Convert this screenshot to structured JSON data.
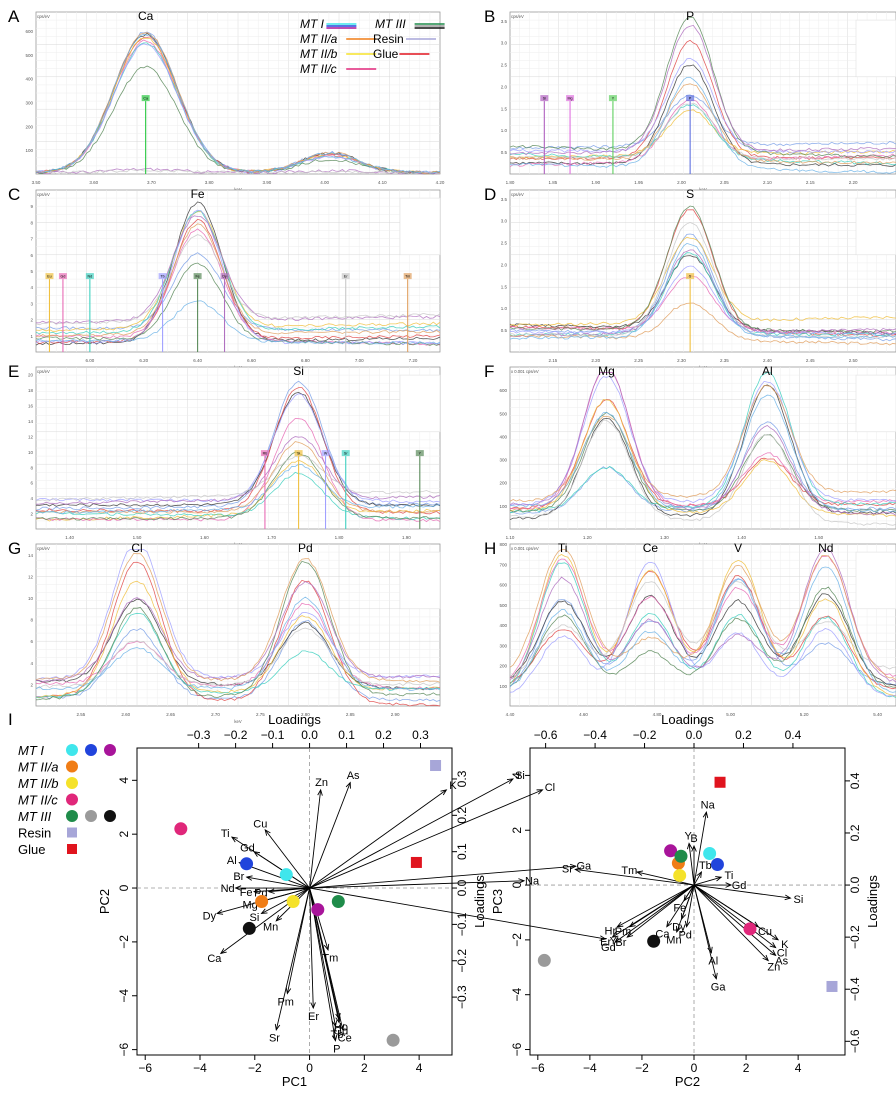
{
  "panel_letters": [
    "A",
    "B",
    "C",
    "D",
    "E",
    "F",
    "G",
    "H",
    "I"
  ],
  "legend": {
    "entries": [
      {
        "label": "MT I",
        "italic": true,
        "colors": [
          "#3fe6ec",
          "#2144dc",
          "#a8149a"
        ]
      },
      {
        "label": "MT II/a",
        "italic": true,
        "colors": [
          "#f07d16"
        ]
      },
      {
        "label": "MT II/b",
        "italic": true,
        "colors": [
          "#f5e22a"
        ]
      },
      {
        "label": "MT II/c",
        "italic": true,
        "colors": [
          "#e0277a"
        ]
      },
      {
        "label": "MT III",
        "italic": true,
        "colors": [
          "#1f8c4a",
          "#9a9a9a",
          "#111111"
        ]
      },
      {
        "label": "Resin",
        "italic": false,
        "colors": [
          "#a7a6d8"
        ]
      },
      {
        "label": "Glue",
        "italic": false,
        "colors": [
          "#e0141e"
        ]
      }
    ]
  },
  "chart_data": [
    {
      "panel": "A",
      "type": "line",
      "title": "Ca",
      "element_labels": [
        "Ca"
      ],
      "xlim": [
        3.5,
        4.2
      ],
      "ylim": [
        0,
        680
      ],
      "xlabel": "keV",
      "ylabel": "cps/eV",
      "x_ticks": [
        "3.50",
        "3.60",
        "3.70",
        "3.80",
        "3.90",
        "4.00",
        "4.10",
        "4.20"
      ],
      "y_ticks": [
        "100",
        "200",
        "300",
        "400",
        "500",
        "600"
      ],
      "peaks": [
        {
          "x": 3.69,
          "w": 0.055,
          "heights": [
            640,
            630,
            620,
            615,
            600,
            590,
            585,
            480,
            15,
            10
          ]
        },
        {
          "x": 4.01,
          "w": 0.05,
          "heights": [
            90,
            88,
            85,
            80,
            78,
            75,
            70,
            60,
            8,
            5
          ]
        }
      ],
      "markers": [
        {
          "label": "Ca",
          "x": 3.69,
          "color": "#28c840"
        }
      ],
      "legend": {
        "items": [
          "MT I",
          "MT II/a",
          "MT II/b",
          "MT II/c",
          "MT III",
          "Resin",
          "Glue"
        ]
      }
    },
    {
      "panel": "B",
      "type": "line",
      "title": "P",
      "element_labels": [
        "P"
      ],
      "xlim": [
        1.8,
        2.25
      ],
      "ylim": [
        0,
        3.7
      ],
      "xlabel": "keV",
      "ylabel": "cps/eV",
      "x_ticks": [
        "1.80",
        "1.85",
        "1.90",
        "1.95",
        "2.00",
        "2.05",
        "2.10",
        "2.15",
        "2.20"
      ],
      "y_ticks": [
        "0.5",
        "1.0",
        "1.5",
        "2.0",
        "2.5",
        "3.0",
        "3.5"
      ],
      "markers": [
        {
          "label": "Si",
          "x": 1.84,
          "color": "#b060c0"
        },
        {
          "label": "Mg",
          "x": 1.87,
          "color": "#e070e0"
        },
        {
          "label": "Y",
          "x": 1.92,
          "color": "#60d060"
        },
        {
          "label": "P",
          "x": 2.01,
          "color": "#6070e0"
        }
      ]
    },
    {
      "panel": "C",
      "type": "line",
      "title": "Fe",
      "element_labels": [
        "Fe"
      ],
      "xlim": [
        5.8,
        7.3
      ],
      "ylim": [
        0,
        10
      ],
      "xlabel": "keV",
      "ylabel": "cps/eV",
      "x_ticks": [
        "6.00",
        "6.20",
        "6.40",
        "6.60",
        "6.80",
        "7.00",
        "7.20"
      ],
      "y_ticks": [
        "1",
        "2",
        "3",
        "4",
        "5",
        "6",
        "7",
        "8",
        "9"
      ],
      "markers": [
        {
          "label": "Eu",
          "x": 5.85
        },
        {
          "label": "Gd",
          "x": 5.9
        },
        {
          "label": "Nd",
          "x": 6.0
        },
        {
          "label": "Tb",
          "x": 6.27
        },
        {
          "label": "Fe",
          "x": 6.4
        },
        {
          "label": "Dy",
          "x": 6.5
        },
        {
          "label": "Er",
          "x": 6.95
        },
        {
          "label": "Tm",
          "x": 7.18
        }
      ]
    },
    {
      "panel": "D",
      "type": "line",
      "title": "S",
      "element_labels": [
        "S"
      ],
      "xlim": [
        2.1,
        2.55
      ],
      "ylim": [
        0,
        3.7
      ],
      "xlabel": "keV",
      "ylabel": "cps/eV",
      "x_ticks": [
        "2.15",
        "2.20",
        "2.25",
        "2.30",
        "2.35",
        "2.40",
        "2.45",
        "2.50"
      ],
      "y_ticks": [
        "0.5",
        "1.0",
        "1.5",
        "2.0",
        "2.5",
        "3.0",
        "3.5"
      ],
      "markers": [
        {
          "label": "S",
          "x": 2.31
        }
      ]
    },
    {
      "panel": "E",
      "type": "line",
      "title": "Si",
      "element_labels": [
        "Si"
      ],
      "xlim": [
        1.35,
        1.95
      ],
      "ylim": [
        0,
        21
      ],
      "xlabel": "keV",
      "ylabel": "cps/eV",
      "x_ticks": [
        "1.40",
        "1.50",
        "1.60",
        "1.70",
        "1.80",
        "1.90"
      ],
      "y_ticks": [
        "2",
        "4",
        "6",
        "8",
        "10",
        "12",
        "14",
        "16",
        "18",
        "20"
      ],
      "markers": [
        {
          "label": "Si",
          "x": 1.74
        },
        {
          "label": "Rb",
          "x": 1.69
        },
        {
          "label": "Sr",
          "x": 1.81
        },
        {
          "label": "W",
          "x": 1.78
        },
        {
          "label": "Y",
          "x": 1.92
        }
      ]
    },
    {
      "panel": "F",
      "type": "line",
      "title": "",
      "element_labels": [
        "Mg",
        "Al"
      ],
      "xlim": [
        1.1,
        1.6
      ],
      "ylim": [
        0,
        700
      ],
      "xlabel": "keV",
      "ylabel": "x 0.001 cps/eV",
      "x_ticks": [
        "1.10",
        "1.20",
        "1.30",
        "1.40",
        "1.50"
      ],
      "y_ticks": [
        "100",
        "200",
        "300",
        "400",
        "500",
        "600"
      ]
    },
    {
      "panel": "G",
      "type": "line",
      "title": "",
      "element_labels": [
        "Cl",
        "Pd"
      ],
      "xlim": [
        2.5,
        2.95
      ],
      "ylim": [
        0,
        15
      ],
      "xlabel": "keV",
      "ylabel": "cps/eV",
      "x_ticks": [
        "2.55",
        "2.60",
        "2.65",
        "2.70",
        "2.75",
        "2.80",
        "2.85",
        "2.90"
      ],
      "y_ticks": [
        "2",
        "4",
        "6",
        "8",
        "10",
        "12",
        "14"
      ]
    },
    {
      "panel": "H",
      "type": "line",
      "title": "",
      "element_labels": [
        "Ti",
        "Ce",
        "V",
        "Nd"
      ],
      "xlim": [
        4.4,
        5.45
      ],
      "ylim": [
        0,
        800
      ],
      "xlabel": "keV",
      "ylabel": "x 0.001 cps/eV",
      "x_ticks": [
        "4.40",
        "4.60",
        "4.80",
        "5.00",
        "5.20",
        "5.40"
      ],
      "y_ticks": [
        "100",
        "200",
        "300",
        "400",
        "500",
        "600",
        "700",
        "800"
      ]
    },
    {
      "panel": "I-left",
      "type": "scatter",
      "xlabel": "PC1",
      "ylabel": "PC2",
      "top_axis_label": "Loadings",
      "right_axis_label": "Loadings",
      "xlim": [
        -6.3,
        5.2
      ],
      "ylim": [
        -6.2,
        5.2
      ],
      "x_ticks": [
        -6,
        -4,
        -2,
        0,
        2,
        4
      ],
      "y_ticks": [
        -6,
        -4,
        -2,
        0,
        2,
        4
      ],
      "loading_ticks": [
        -0.3,
        -0.2,
        -0.1,
        0.0,
        0.1,
        0.2,
        0.3
      ],
      "loading_scale": 13.5,
      "points": [
        {
          "group": "MT I",
          "x": -0.85,
          "y": 0.5,
          "color": "#3fe6ec"
        },
        {
          "group": "MT I",
          "x": -2.3,
          "y": 0.9,
          "color": "#2144dc"
        },
        {
          "group": "MT I",
          "x": 0.3,
          "y": -0.8,
          "color": "#a8149a"
        },
        {
          "group": "MT II/a",
          "x": -1.75,
          "y": -0.5,
          "color": "#f07d16"
        },
        {
          "group": "MT II/b",
          "x": -0.6,
          "y": -0.5,
          "color": "#f5e22a"
        },
        {
          "group": "MT II/c",
          "x": -4.7,
          "y": 2.2,
          "color": "#e0277a"
        },
        {
          "group": "MT III",
          "x": 1.05,
          "y": -0.5,
          "color": "#1f8c4a"
        },
        {
          "group": "MT III",
          "x": 3.05,
          "y": -5.65,
          "color": "#9a9a9a"
        },
        {
          "group": "MT III",
          "x": -2.2,
          "y": -1.5,
          "color": "#111111"
        },
        {
          "group": "Resin",
          "x": 4.6,
          "y": 4.55,
          "color": "#a7a6d8",
          "shape": "square"
        },
        {
          "group": "Glue",
          "x": 3.9,
          "y": 0.95,
          "color": "#e0141e",
          "shape": "square"
        }
      ],
      "loadings": [
        {
          "var": "Zn",
          "x": 0.03,
          "y": 0.27
        },
        {
          "var": "As",
          "x": 0.11,
          "y": 0.29
        },
        {
          "var": "K",
          "x": 0.37,
          "y": 0.27
        },
        {
          "var": "Si",
          "x": 0.55,
          "y": 0.3
        },
        {
          "var": "Cl",
          "x": 0.63,
          "y": 0.27
        },
        {
          "var": "Ga",
          "x": 0.72,
          "y": 0.06
        },
        {
          "var": "Na",
          "x": 0.58,
          "y": 0.02
        },
        {
          "var": "Y",
          "x": 0.8,
          "y": -0.14
        },
        {
          "var": "Cu",
          "x": -0.12,
          "y": 0.16
        },
        {
          "var": "Ti",
          "x": -0.21,
          "y": 0.14
        },
        {
          "var": "Gd",
          "x": -0.15,
          "y": 0.1
        },
        {
          "var": "Al",
          "x": -0.19,
          "y": 0.07
        },
        {
          "var": "Br",
          "x": -0.17,
          "y": 0.03
        },
        {
          "var": "Nd",
          "x": -0.2,
          "y": 0.0
        },
        {
          "var": "Fe",
          "x": -0.15,
          "y": -0.01
        },
        {
          "var": "Pd",
          "x": -0.11,
          "y": -0.01
        },
        {
          "var": "Mg",
          "x": -0.14,
          "y": -0.04
        },
        {
          "var": "Dy",
          "x": -0.25,
          "y": -0.07
        },
        {
          "var": "Si",
          "x": -0.13,
          "y": -0.07
        },
        {
          "var": "Mn",
          "x": -0.09,
          "y": -0.09
        },
        {
          "var": "Ca",
          "x": -0.24,
          "y": -0.18
        },
        {
          "var": "Pm",
          "x": -0.06,
          "y": -0.29
        },
        {
          "var": "Sr",
          "x": -0.09,
          "y": -0.39
        },
        {
          "var": "Er",
          "x": 0.01,
          "y": -0.33
        },
        {
          "var": "Tm",
          "x": 0.05,
          "y": -0.17
        },
        {
          "var": "P",
          "x": 0.07,
          "y": -0.42
        },
        {
          "var": "Tb",
          "x": 0.07,
          "y": -0.38
        },
        {
          "var": "Gd",
          "x": 0.08,
          "y": -0.37
        },
        {
          "var": "Ce",
          "x": 0.09,
          "y": -0.39
        },
        {
          "var": "Ho",
          "x": 0.08,
          "y": -0.36
        }
      ]
    },
    {
      "panel": "I-right",
      "type": "scatter",
      "xlabel": "PC2",
      "ylabel": "PC3",
      "top_axis_label": "Loadings",
      "right_axis_label": "Loadings",
      "xlim": [
        -6.3,
        5.8
      ],
      "ylim": [
        -6.2,
        5.0
      ],
      "x_ticks": [
        -6,
        -4,
        -2,
        0,
        2,
        4
      ],
      "y_ticks": [
        -6,
        -4,
        -2,
        0,
        2,
        4
      ],
      "loading_ticks": [
        -0.6,
        -0.4,
        -0.2,
        0.0,
        0.2,
        0.4
      ],
      "loading_scale": 9.5,
      "points": [
        {
          "group": "MT I",
          "x": 0.6,
          "y": 1.15,
          "color": "#3fe6ec"
        },
        {
          "group": "MT I",
          "x": 0.9,
          "y": 0.75,
          "color": "#2144dc"
        },
        {
          "group": "MT I",
          "x": -0.9,
          "y": 1.25,
          "color": "#a8149a"
        },
        {
          "group": "MT II/a",
          "x": -0.6,
          "y": 0.8,
          "color": "#f07d16"
        },
        {
          "group": "MT II/b",
          "x": -0.55,
          "y": 0.35,
          "color": "#f5e22a"
        },
        {
          "group": "MT II/c",
          "x": 2.15,
          "y": -1.6,
          "color": "#e0277a"
        },
        {
          "group": "MT III",
          "x": -0.5,
          "y": 1.05,
          "color": "#1f8c4a"
        },
        {
          "group": "MT III",
          "x": -5.75,
          "y": -2.75,
          "color": "#9a9a9a"
        },
        {
          "group": "MT III",
          "x": -1.55,
          "y": -2.05,
          "color": "#111111"
        },
        {
          "group": "Resin",
          "x": 5.3,
          "y": -3.7,
          "color": "#a7a6d8",
          "shape": "square"
        },
        {
          "group": "Glue",
          "x": 1.0,
          "y": 3.75,
          "color": "#e0141e",
          "shape": "square"
        }
      ],
      "loadings": [
        {
          "var": "Na",
          "x": 0.05,
          "y": 0.28
        },
        {
          "var": "Y",
          "x": -0.02,
          "y": 0.16
        },
        {
          "var": "B",
          "x": 0.0,
          "y": 0.15
        },
        {
          "var": "Sr",
          "x": -0.48,
          "y": 0.06
        },
        {
          "var": "Tm",
          "x": -0.23,
          "y": 0.05
        },
        {
          "var": "Tb",
          "x": 0.03,
          "y": 0.05
        },
        {
          "var": "Ti",
          "x": 0.11,
          "y": 0.03
        },
        {
          "var": "Gd",
          "x": 0.15,
          "y": 0.0
        },
        {
          "var": "Si",
          "x": 0.39,
          "y": -0.05
        },
        {
          "var": "Cu",
          "x": 0.26,
          "y": -0.16
        },
        {
          "var": "K",
          "x": 0.34,
          "y": -0.21
        },
        {
          "var": "Cl",
          "x": 0.33,
          "y": -0.24
        },
        {
          "var": "As",
          "x": 0.33,
          "y": -0.27
        },
        {
          "var": "Zn",
          "x": 0.3,
          "y": -0.29
        },
        {
          "var": "Al",
          "x": 0.07,
          "y": -0.26
        },
        {
          "var": "Ga",
          "x": 0.09,
          "y": -0.36
        },
        {
          "var": "Dy",
          "x": -0.05,
          "y": -0.13
        },
        {
          "var": "Pd",
          "x": -0.03,
          "y": -0.16
        },
        {
          "var": "Mn",
          "x": -0.07,
          "y": -0.18
        },
        {
          "var": "Ca",
          "x": -0.11,
          "y": -0.16
        },
        {
          "var": "Fe",
          "x": -0.04,
          "y": -0.06
        },
        {
          "var": "Hr",
          "x": -0.31,
          "y": -0.16
        },
        {
          "var": "Pm",
          "x": -0.26,
          "y": -0.16
        },
        {
          "var": "Er",
          "x": -0.33,
          "y": -0.2
        },
        {
          "var": "Br",
          "x": -0.27,
          "y": -0.2
        },
        {
          "var": "Gd",
          "x": -0.32,
          "y": -0.22
        }
      ]
    }
  ]
}
